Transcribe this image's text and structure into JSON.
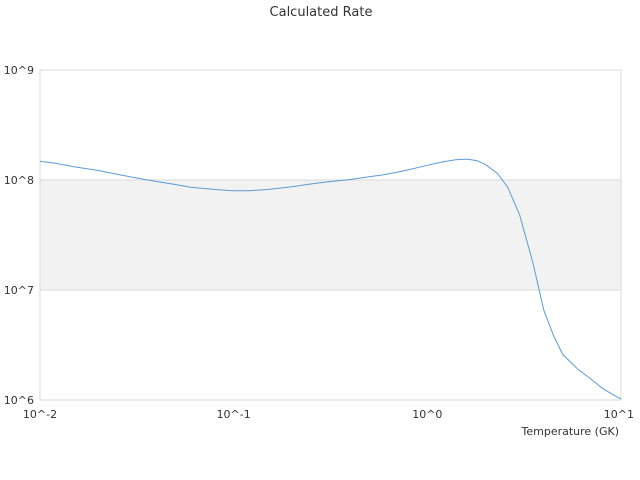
{
  "chart_data": {
    "type": "line",
    "title": "Calculated Rate",
    "xlabel": "Temperature (GK)",
    "ylabel": "",
    "x_scale": "log",
    "y_scale": "log",
    "xlim": [
      0.01,
      10
    ],
    "ylim": [
      1000000,
      1000000000
    ],
    "x_tick_values": [
      0.01,
      0.1,
      1,
      10
    ],
    "x_tick_labels": [
      "10^-2",
      "10^-1",
      "10^0",
      "10^1"
    ],
    "y_tick_values": [
      1000000,
      10000000,
      100000000,
      1000000000
    ],
    "y_tick_labels": [
      "10^6",
      "10^7",
      "10^8",
      "10^9"
    ],
    "band_y": [
      10000000,
      100000000
    ],
    "band_color": "#f2f2f2",
    "grid": true,
    "line_color": "#5b9bd5",
    "series": [
      {
        "x": [
          0.01,
          0.012,
          0.015,
          0.02,
          0.025,
          0.03,
          0.04,
          0.05,
          0.06,
          0.08,
          0.1,
          0.12,
          0.15,
          0.2,
          0.25,
          0.3,
          0.4,
          0.5,
          0.6,
          0.7,
          0.8,
          1.0,
          1.2,
          1.4,
          1.6,
          1.8,
          2.0,
          2.3,
          2.6,
          3.0,
          3.5,
          4.0,
          4.5,
          5.0,
          6.0,
          7.0,
          8.0,
          9.0,
          10.0
        ],
        "y": [
          148000000,
          142000000,
          132000000,
          122000000,
          113000000,
          106000000,
          97000000,
          91000000,
          86000000,
          82000000,
          80000000,
          80000000,
          82000000,
          87000000,
          92000000,
          96000000,
          101000000,
          107000000,
          112000000,
          118000000,
          124000000,
          136000000,
          146000000,
          153000000,
          155000000,
          150000000,
          138000000,
          115000000,
          86000000,
          48000000,
          18000000,
          6500000,
          3800000,
          2600000,
          1900000,
          1550000,
          1280000,
          1130000,
          1020000
        ]
      }
    ]
  }
}
